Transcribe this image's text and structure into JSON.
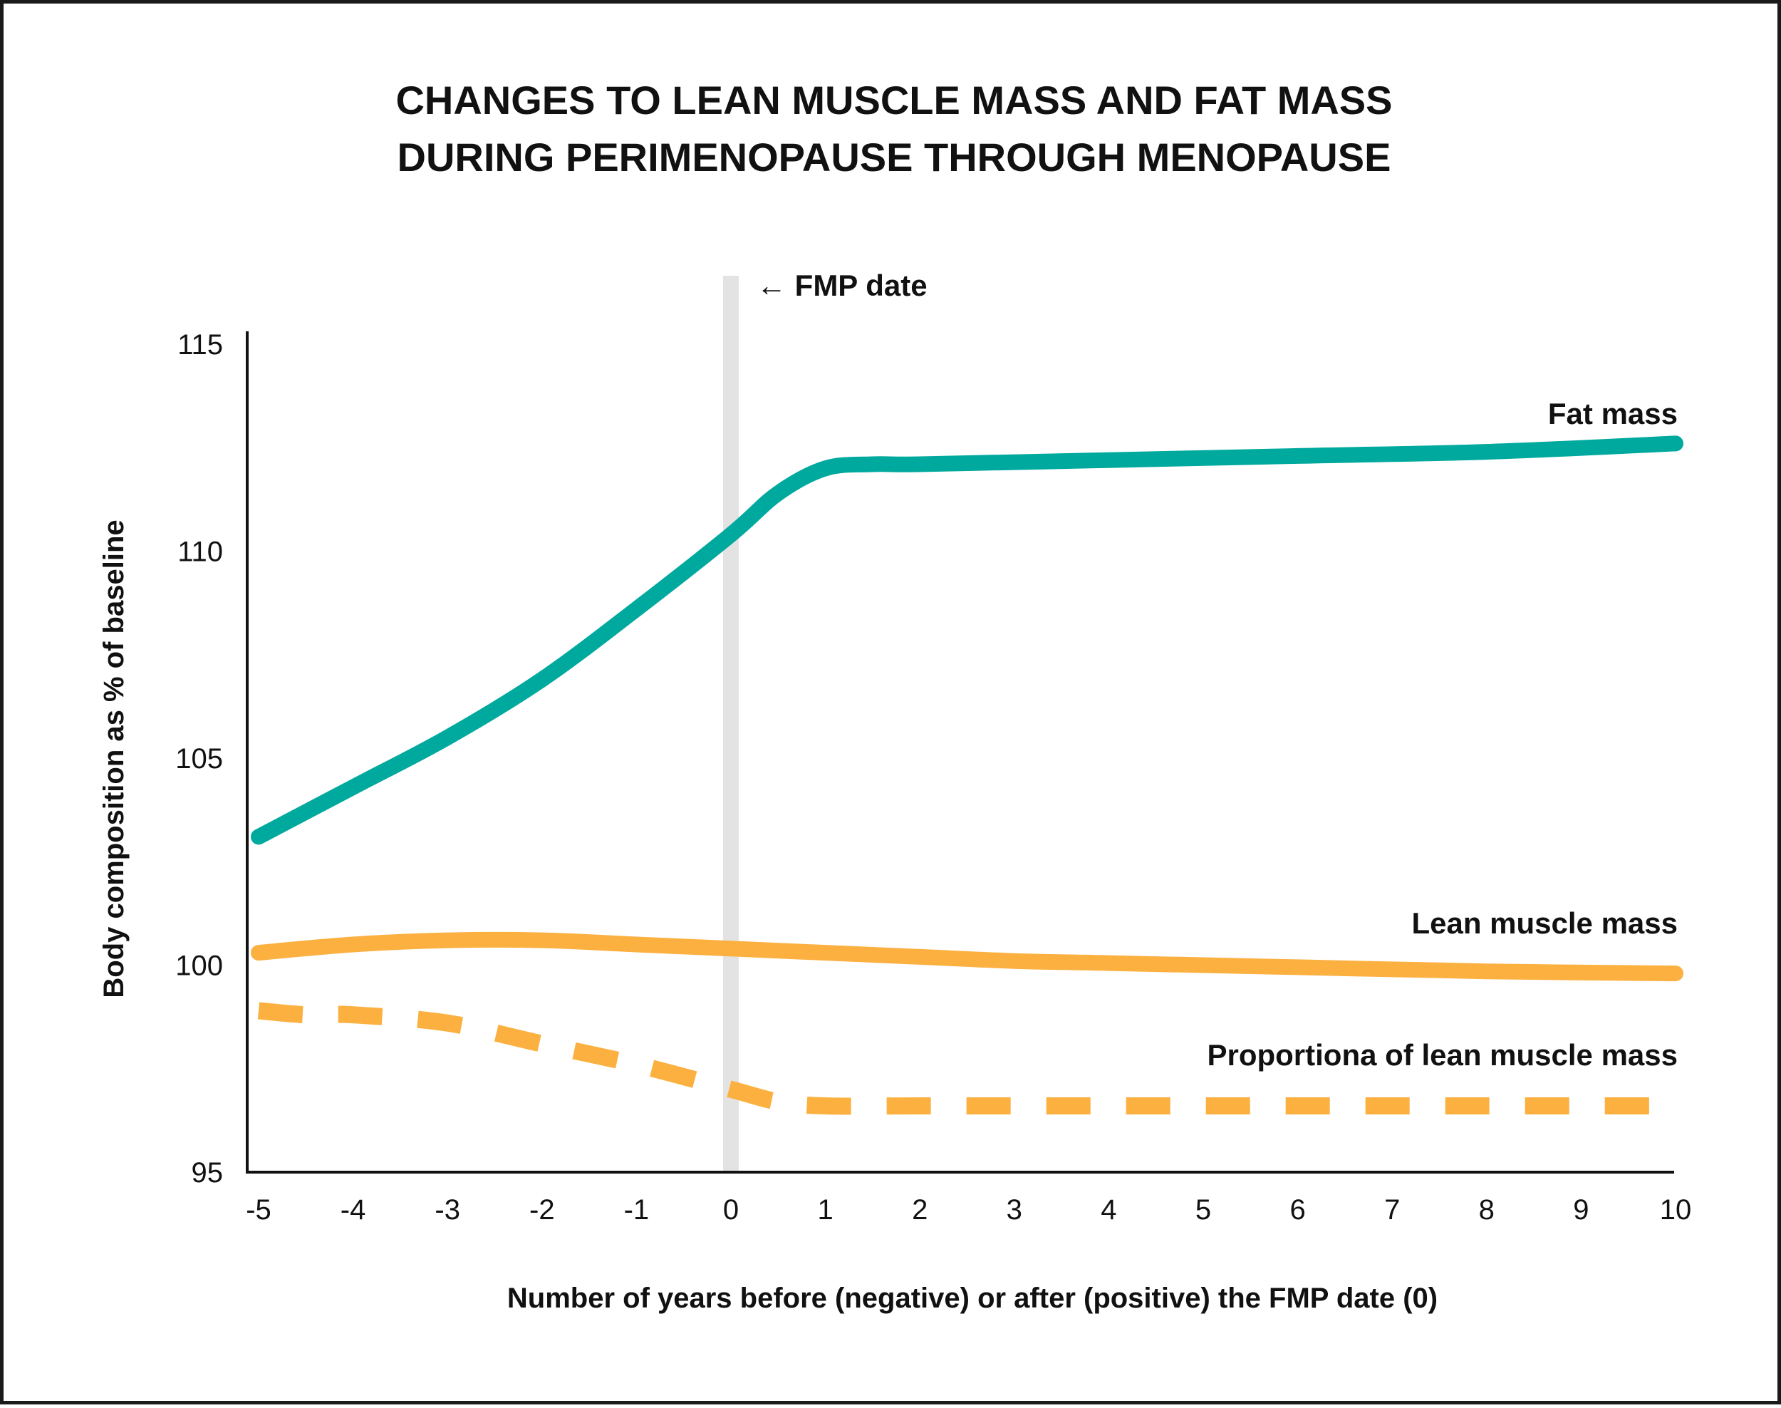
{
  "chart_data": {
    "type": "line",
    "title_lines": [
      "CHANGES TO LEAN MUSCLE MASS AND FAT MASS",
      "DURING PERIMENOPAUSE THROUGH MENOPAUSE"
    ],
    "xlabel": "Number of years before (negative) or after (positive) the FMP date (0)",
    "ylabel": "Body composition as % of baseline",
    "x_ticks": [
      -5,
      -4,
      -3,
      -2,
      -1,
      0,
      1,
      2,
      3,
      4,
      5,
      6,
      7,
      8,
      9,
      10
    ],
    "y_ticks": [
      95,
      100,
      105,
      110,
      115
    ],
    "xlim": [
      -5,
      10
    ],
    "ylim": [
      95,
      115
    ],
    "grid": false,
    "annotation": {
      "x": 0,
      "label": "← FMP date"
    },
    "series": [
      {
        "name": "Fat mass",
        "style": "solid",
        "color": "#00A99D",
        "x": [
          -5,
          -4,
          -3,
          -2,
          -1,
          0,
          0.5,
          1,
          1.5,
          2,
          4,
          6,
          8,
          10
        ],
        "y": [
          103.1,
          104.3,
          105.5,
          106.9,
          108.6,
          110.4,
          111.4,
          112.0,
          112.1,
          112.1,
          112.2,
          112.3,
          112.4,
          112.6
        ]
      },
      {
        "name": "Lean muscle mass",
        "style": "solid",
        "color": "#FBB040",
        "x": [
          -5,
          -4,
          -3,
          -2,
          -1,
          0,
          1,
          2,
          3,
          4,
          6,
          8,
          10
        ],
        "y": [
          100.3,
          100.5,
          100.6,
          100.6,
          100.5,
          100.4,
          100.3,
          100.2,
          100.1,
          100.05,
          99.95,
          99.85,
          99.8
        ]
      },
      {
        "name": "Proportiona of lean muscle mass",
        "style": "dashed",
        "color": "#FBB040",
        "x": [
          -5,
          -4.5,
          -4,
          -3,
          -2,
          -1,
          0,
          0.5,
          1,
          2,
          4,
          6,
          8,
          10
        ],
        "y": [
          98.9,
          98.8,
          98.8,
          98.6,
          98.1,
          97.6,
          97.0,
          96.7,
          96.6,
          96.6,
          96.6,
          96.6,
          96.6,
          96.6
        ]
      }
    ]
  }
}
